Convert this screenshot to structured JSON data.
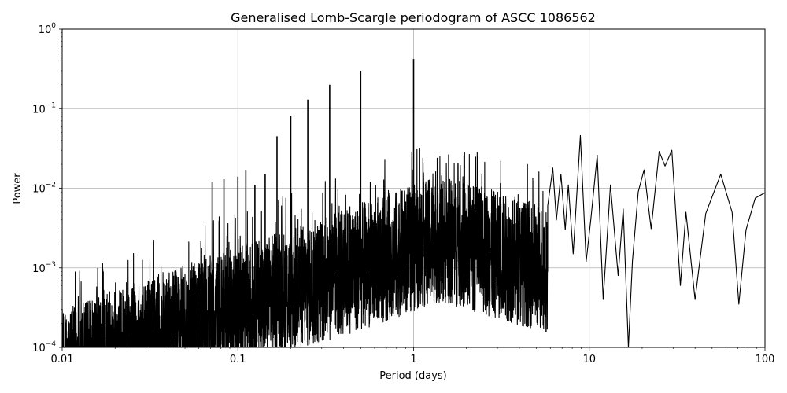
{
  "chart_data": {
    "type": "line",
    "title": "Generalised Lomb-Scargle periodogram of ASCC 1086562",
    "xlabel": "Period (days)",
    "ylabel": "Power",
    "xscale": "log",
    "yscale": "log",
    "xlim": [
      0.01,
      100
    ],
    "ylim": [
      0.0001,
      1
    ],
    "grid": true,
    "line_color": "#000000",
    "x_ticks": [
      {
        "value": 0.01,
        "label": "0.01"
      },
      {
        "value": 0.1,
        "label": "0.1"
      },
      {
        "value": 1,
        "label": "1"
      },
      {
        "value": 10,
        "label": "10"
      },
      {
        "value": 100,
        "label": "100"
      }
    ],
    "y_ticks": [
      {
        "value": 0.0001,
        "base": "10",
        "exp": "−4"
      },
      {
        "value": 0.001,
        "base": "10",
        "exp": "−3"
      },
      {
        "value": 0.01,
        "base": "10",
        "exp": "−2"
      },
      {
        "value": 0.1,
        "base": "10",
        "exp": "−1"
      },
      {
        "value": 1,
        "base": "10",
        "exp": "0"
      }
    ],
    "peaks": [
      {
        "period": 0.0714,
        "power": 0.012
      },
      {
        "period": 0.0833,
        "power": 0.013
      },
      {
        "period": 0.1,
        "power": 0.014
      },
      {
        "period": 0.111,
        "power": 0.017
      },
      {
        "period": 0.125,
        "power": 0.011
      },
      {
        "period": 0.143,
        "power": 0.015
      },
      {
        "period": 0.167,
        "power": 0.045
      },
      {
        "period": 0.2,
        "power": 0.08
      },
      {
        "period": 0.25,
        "power": 0.13
      },
      {
        "period": 0.333,
        "power": 0.2
      },
      {
        "period": 0.5,
        "power": 0.3
      },
      {
        "period": 1.0,
        "power": 0.42
      }
    ],
    "smooth_region": [
      {
        "period": 5.8,
        "power": 0.006
      },
      {
        "period": 6.2,
        "power": 0.018
      },
      {
        "period": 6.5,
        "power": 0.004
      },
      {
        "period": 6.9,
        "power": 0.015
      },
      {
        "period": 7.3,
        "power": 0.003
      },
      {
        "period": 7.6,
        "power": 0.011
      },
      {
        "period": 8.1,
        "power": 0.0015
      },
      {
        "period": 8.9,
        "power": 0.046
      },
      {
        "period": 9.6,
        "power": 0.0012
      },
      {
        "period": 10.2,
        "power": 0.004
      },
      {
        "period": 11.1,
        "power": 0.026
      },
      {
        "period": 12.0,
        "power": 0.0004
      },
      {
        "period": 13.2,
        "power": 0.011
      },
      {
        "period": 14.6,
        "power": 0.0008
      },
      {
        "period": 15.6,
        "power": 0.0055
      },
      {
        "period": 16.7,
        "power": 0.0001
      },
      {
        "period": 17.6,
        "power": 0.0012
      },
      {
        "period": 19.0,
        "power": 0.009
      },
      {
        "period": 20.5,
        "power": 0.017
      },
      {
        "period": 22.5,
        "power": 0.0031
      },
      {
        "period": 25.0,
        "power": 0.029
      },
      {
        "period": 27.0,
        "power": 0.019
      },
      {
        "period": 29.5,
        "power": 0.03
      },
      {
        "period": 33.0,
        "power": 0.0006
      },
      {
        "period": 35.5,
        "power": 0.005
      },
      {
        "period": 40.0,
        "power": 0.0004
      },
      {
        "period": 46.0,
        "power": 0.0048
      },
      {
        "period": 56.0,
        "power": 0.015
      },
      {
        "period": 65.0,
        "power": 0.005
      },
      {
        "period": 71.0,
        "power": 0.00035
      },
      {
        "period": 78.0,
        "power": 0.003
      },
      {
        "period": 88.0,
        "power": 0.0075
      },
      {
        "period": 100.0,
        "power": 0.0088
      }
    ]
  }
}
